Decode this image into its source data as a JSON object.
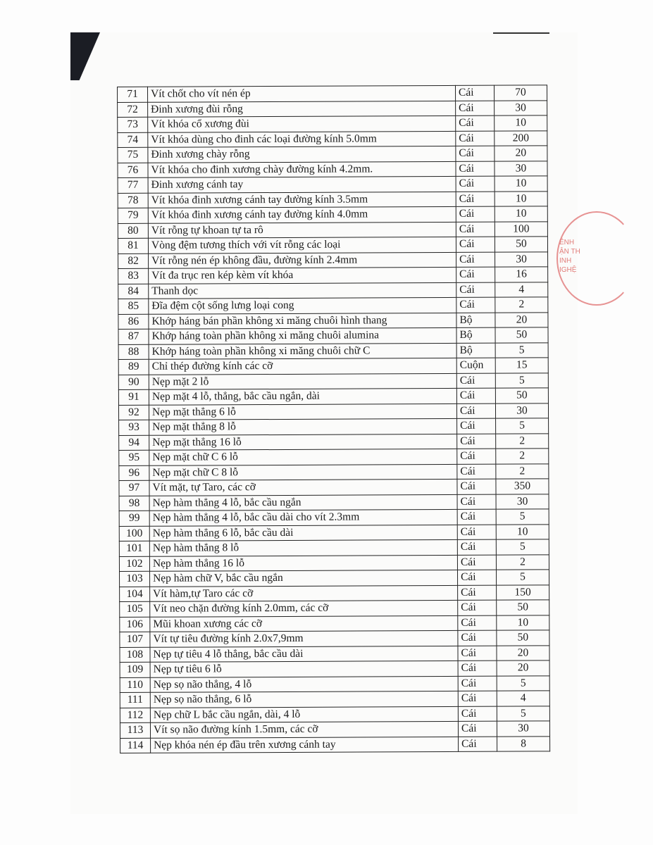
{
  "table": {
    "rows": [
      {
        "no": "71",
        "name": "Vít chốt cho vít nén ép",
        "unit": "Cái",
        "qty": "70"
      },
      {
        "no": "72",
        "name": "Đinh xương đùi rỗng",
        "unit": "Cái",
        "qty": "30"
      },
      {
        "no": "73",
        "name": "Vít khóa cổ xương đùi",
        "unit": "Cái",
        "qty": "10"
      },
      {
        "no": "74",
        "name": "Vít khóa dùng cho đinh các loại đường kính 5.0mm",
        "unit": "Cái",
        "qty": "200"
      },
      {
        "no": "75",
        "name": "Đinh xương chày rỗng",
        "unit": "Cái",
        "qty": "20"
      },
      {
        "no": "76",
        "name": "Vít khóa cho đinh xương chày đường kính 4.2mm.",
        "unit": "Cái",
        "qty": "30"
      },
      {
        "no": "77",
        "name": "Đinh xương cánh tay",
        "unit": "Cái",
        "qty": "10"
      },
      {
        "no": "78",
        "name": "Vít khóa đinh xương cánh tay đường kính 3.5mm",
        "unit": "Cái",
        "qty": "10"
      },
      {
        "no": "79",
        "name": "Vít khóa đinh xương cánh tay đường kính 4.0mm",
        "unit": "Cái",
        "qty": "10"
      },
      {
        "no": "80",
        "name": "Vít rỗng tự khoan tự ta rô",
        "unit": "Cái",
        "qty": "100"
      },
      {
        "no": "81",
        "name": "Vòng đệm tương thích với vít rỗng các loại",
        "unit": "Cái",
        "qty": "50"
      },
      {
        "no": "82",
        "name": "Vít rỗng nén ép không đầu, đường kính 2.4mm",
        "unit": "Cái",
        "qty": "30"
      },
      {
        "no": "83",
        "name": "Vít đa trục ren kép kèm vít khóa",
        "unit": "Cái",
        "qty": "16"
      },
      {
        "no": "84",
        "name": "Thanh dọc",
        "unit": "Cái",
        "qty": "4"
      },
      {
        "no": "85",
        "name": "Đĩa đệm cột sống lưng loại cong",
        "unit": "Cái",
        "qty": "2"
      },
      {
        "no": "86",
        "name": "Khớp háng bán phần không xi măng chuôi hình thang",
        "unit": "Bộ",
        "qty": "20"
      },
      {
        "no": "87",
        "name": "Khớp háng toàn phần không xi măng chuôi alumina",
        "unit": "Bộ",
        "qty": "50"
      },
      {
        "no": "88",
        "name": "Khớp háng toàn phần không xi măng chuôi chữ C",
        "unit": "Bộ",
        "qty": "5"
      },
      {
        "no": "89",
        "name": "Chỉ thép đường kính các cỡ",
        "unit": "Cuộn",
        "qty": "15"
      },
      {
        "no": "90",
        "name": "Nẹp mặt 2 lỗ",
        "unit": "Cái",
        "qty": "5"
      },
      {
        "no": "91",
        "name": "Nẹp mặt 4 lỗ, thẳng, bắc cầu ngắn, dài",
        "unit": "Cái",
        "qty": "50"
      },
      {
        "no": "92",
        "name": "Nẹp mặt thẳng 6 lỗ",
        "unit": "Cái",
        "qty": "30"
      },
      {
        "no": "93",
        "name": "Nẹp mặt thẳng 8 lỗ",
        "unit": "Cái",
        "qty": "5"
      },
      {
        "no": "94",
        "name": "Nẹp mặt thẳng 16 lỗ",
        "unit": "Cái",
        "qty": "2"
      },
      {
        "no": "95",
        "name": "Nẹp mặt chữ C 6 lỗ",
        "unit": "Cái",
        "qty": "2"
      },
      {
        "no": "96",
        "name": "Nẹp mặt chữ C 8 lỗ",
        "unit": "Cái",
        "qty": "2"
      },
      {
        "no": "97",
        "name": "Vít mặt, tự Taro, các cỡ",
        "unit": "Cái",
        "qty": "350"
      },
      {
        "no": "98",
        "name": "Nẹp hàm thẳng 4 lỗ, bắc cầu ngắn",
        "unit": "Cái",
        "qty": "30"
      },
      {
        "no": "99",
        "name": "Nẹp hàm thẳng 4 lỗ, bắc cầu dài cho vít 2.3mm",
        "unit": "Cái",
        "qty": "5"
      },
      {
        "no": "100",
        "name": "Nẹp hàm thẳng 6 lỗ, bắc cầu dài",
        "unit": "Cái",
        "qty": "10"
      },
      {
        "no": "101",
        "name": "Nẹp hàm thẳng 8 lỗ",
        "unit": "Cái",
        "qty": "5"
      },
      {
        "no": "102",
        "name": "Nẹp hàm thẳng 16 lỗ",
        "unit": "Cái",
        "qty": "2"
      },
      {
        "no": "103",
        "name": "Nẹp hàm chữ V, bắc cầu ngắn",
        "unit": "Cái",
        "qty": "5"
      },
      {
        "no": "104",
        "name": "Vít hàm,tự Taro các cỡ",
        "unit": "Cái",
        "qty": "150"
      },
      {
        "no": "105",
        "name": "Vít neo chặn đường kính 2.0mm, các cỡ",
        "unit": "Cái",
        "qty": "50"
      },
      {
        "no": "106",
        "name": "Mũi khoan xương các cỡ",
        "unit": "Cái",
        "qty": "10"
      },
      {
        "no": "107",
        "name": "Vít tự tiêu đường kính  2.0x7,9mm",
        "unit": "Cái",
        "qty": "50"
      },
      {
        "no": "108",
        "name": "Nẹp tự tiêu 4 lỗ thẳng, bắc cầu dài",
        "unit": "Cái",
        "qty": "20"
      },
      {
        "no": "109",
        "name": "Nẹp tự tiêu 6 lỗ",
        "unit": "Cái",
        "qty": "20"
      },
      {
        "no": "110",
        "name": "Nẹp sọ não thẳng, 4 lỗ",
        "unit": "Cái",
        "qty": "5"
      },
      {
        "no": "111",
        "name": "Nẹp sọ não thẳng, 6 lỗ",
        "unit": "Cái",
        "qty": "4"
      },
      {
        "no": "112",
        "name": "Nẹp chữ L bắc cầu ngắn, dài, 4 lỗ",
        "unit": "Cái",
        "qty": "5"
      },
      {
        "no": "113",
        "name": "Vít sọ não đường kính 1.5mm, các cỡ",
        "unit": "Cái",
        "qty": "30"
      },
      {
        "no": "114",
        "name": "Nẹp khóa nén ép đầu trên xương cánh tay",
        "unit": "Cái",
        "qty": "8"
      }
    ]
  },
  "stamp": {
    "lines": [
      "ÊNH",
      "ẬN TH",
      "INH",
      "IGHỆ"
    ],
    "color": "#d9534f"
  }
}
